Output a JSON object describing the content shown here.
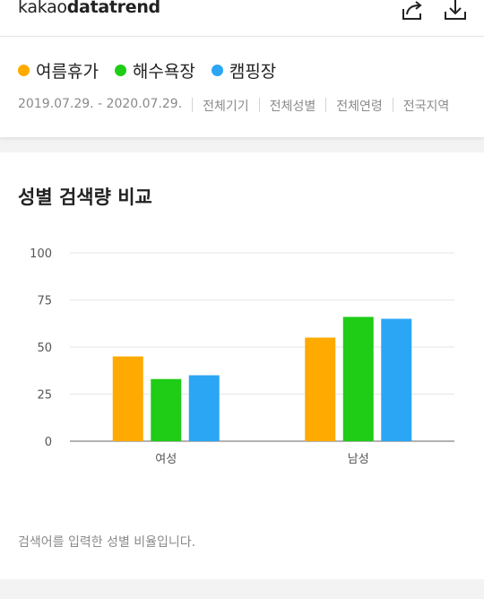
{
  "header": {
    "logo_light": "kakao",
    "logo_bold": "datatrend",
    "share_icon": "share-icon",
    "download_icon": "download-icon"
  },
  "filters": {
    "keywords": [
      {
        "label": "여름휴가",
        "color": "#FFAA00"
      },
      {
        "label": "해수욕장",
        "color": "#1FCC16"
      },
      {
        "label": "캠핑장",
        "color": "#2AA6F5"
      }
    ],
    "meta": [
      "2019.07.29. - 2020.07.29.",
      "전체기기",
      "전체성별",
      "전체연령",
      "전국지역"
    ]
  },
  "card": {
    "title": "성별 검색량 비교",
    "caption": "검색어를 입력한 성별 비율입니다."
  },
  "chart_data": {
    "type": "bar",
    "categories": [
      "여성",
      "남성"
    ],
    "series": [
      {
        "name": "여름휴가",
        "values": [
          45,
          55
        ],
        "color": "#FFAA00"
      },
      {
        "name": "해수욕장",
        "values": [
          33,
          66
        ],
        "color": "#1FCC16"
      },
      {
        "name": "캠핑장",
        "values": [
          35,
          65
        ],
        "color": "#2AA6F5"
      }
    ],
    "y_ticks": [
      0,
      25,
      50,
      75,
      100
    ],
    "ylim": [
      0,
      100
    ],
    "grid": true,
    "legend": "top-left"
  }
}
